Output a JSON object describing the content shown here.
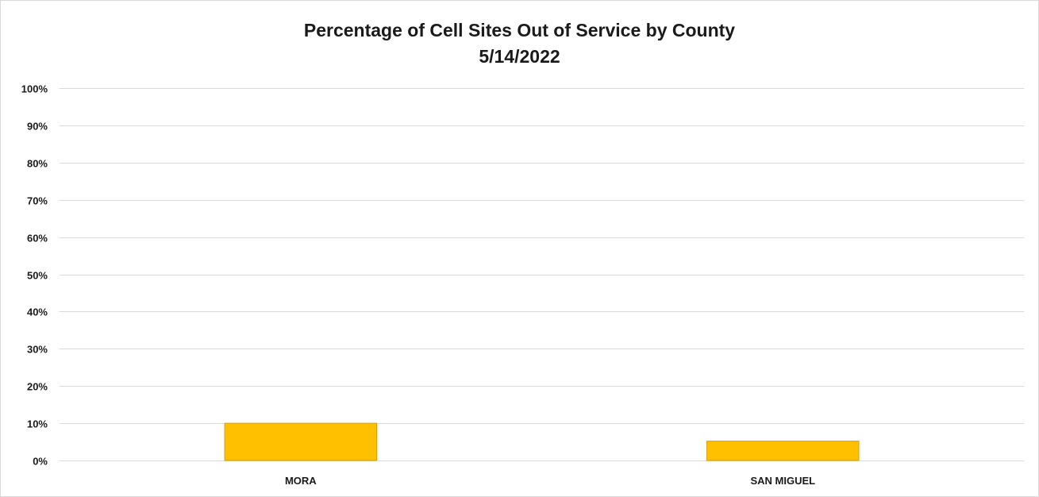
{
  "chart_data": {
    "type": "bar",
    "title": "Percentage of Cell Sites Out of Service by County",
    "subtitle": "5/14/2022",
    "categories": [
      "MORA",
      "SAN MIGUEL"
    ],
    "values": [
      0.1,
      0.052
    ],
    "ylim": [
      0,
      1
    ],
    "yticks": [
      0,
      0.1,
      0.2,
      0.3,
      0.4,
      0.5,
      0.6,
      0.7,
      0.8,
      0.9,
      1.0
    ],
    "ytick_labels": [
      "0%",
      "10%",
      "20%",
      "30%",
      "40%",
      "50%",
      "60%",
      "70%",
      "80%",
      "90%",
      "100%"
    ],
    "xlabel": "",
    "ylabel": "",
    "grid": true,
    "legend": "none",
    "colors": {
      "bar_fill": "#FFC000",
      "bar_stroke": "#E59A00",
      "grid": "#d9d9d9"
    }
  }
}
